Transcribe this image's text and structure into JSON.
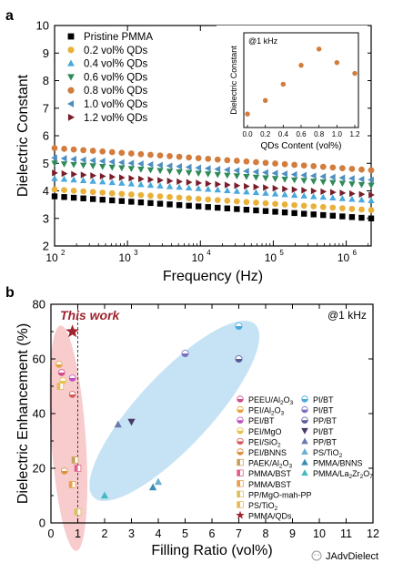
{
  "watermark": "JAdvDielect",
  "chart_data": [
    {
      "panel": "a",
      "type": "scatter",
      "xlabel": "Frequency (Hz)",
      "ylabel": "Dielectric Constant",
      "xscale": "log",
      "xlim": [
        100,
        2200000
      ],
      "ylim": [
        2,
        10
      ],
      "yticks": [
        "2",
        "3",
        "4",
        "5",
        "6",
        "7",
        "8",
        "9",
        "10"
      ],
      "xticks": [
        "10",
        "10",
        "10",
        "10",
        "10"
      ],
      "xtick_exponents": [
        "2",
        "3",
        "4",
        "5",
        "6"
      ],
      "legend_position": "top-left",
      "series": [
        {
          "name": "Pristine PMMA",
          "marker": "square",
          "color": "#000000",
          "start": 3.8,
          "end": 3.0
        },
        {
          "name": "0.2 vol% QDs",
          "marker": "circle",
          "color": "#e8b23a",
          "start": 4.05,
          "end": 3.3
        },
        {
          "name": "0.4 vol% QDs",
          "marker": "triangle-up",
          "color": "#4aa9dc",
          "start": 4.45,
          "end": 3.65
        },
        {
          "name": "0.6 vol% QDs",
          "marker": "triangle-down",
          "color": "#2e8b57",
          "start": 5.0,
          "end": 4.2
        },
        {
          "name": "0.8 vol% QDs",
          "marker": "circle",
          "color": "#d27c3d",
          "start": 5.55,
          "end": 4.75
        },
        {
          "name": "1.0 vol% QDs",
          "marker": "triangle-left",
          "color": "#4f8fc0",
          "start": 5.2,
          "end": 4.4
        },
        {
          "name": "1.2 vol% QDs",
          "marker": "triangle-right",
          "color": "#7a1d2a",
          "start": 4.65,
          "end": 3.85
        }
      ],
      "inset": {
        "annotation": "@1 kHz",
        "xlabel": "QDs Content (vol%)",
        "ylabel": "Dielectric Constant",
        "xlim": [
          0,
          1.2
        ],
        "ylim": [
          3,
          6.5
        ],
        "xticks": [
          "0.0",
          "0.2",
          "0.4",
          "0.6",
          "0.8",
          "1.0",
          "1.2"
        ],
        "color": "#d27c3d",
        "x": [
          0.0,
          0.2,
          0.4,
          0.6,
          0.8,
          1.0,
          1.2
        ],
        "y": [
          3.5,
          4.0,
          4.6,
          5.3,
          5.9,
          5.4,
          5.0
        ]
      }
    },
    {
      "panel": "b",
      "type": "scatter",
      "xlabel": "Filling Ratio (vol%)",
      "ylabel": "Dielectric Enhancement (%)",
      "xlim": [
        0,
        12
      ],
      "ylim": [
        0,
        80
      ],
      "xticks": [
        "0",
        "1",
        "2",
        "3",
        "4",
        "5",
        "6",
        "7",
        "8",
        "9",
        "10",
        "11",
        "12"
      ],
      "yticks": [
        "0",
        "20",
        "40",
        "60",
        "80"
      ],
      "annotation": "@1 kHz",
      "highlight_label": "This work",
      "legend_position": "bottom-right",
      "legend_col1": [
        {
          "pre": "PEEU/Al",
          "sub": "2",
          "mid": "O",
          "sub2": "3",
          "color": "#d14b8a",
          "marker": "half-circle"
        },
        {
          "pre": "PEI/Al",
          "sub": "2",
          "mid": "O",
          "sub2": "3",
          "color": "#e5a23c",
          "marker": "half-circle"
        },
        {
          "pre": "PEI/BT",
          "sub": "",
          "mid": "",
          "sub2": "",
          "color": "#c04fc0",
          "marker": "half-circle"
        },
        {
          "pre": "PEI/MgO",
          "sub": "",
          "mid": "",
          "sub2": "",
          "color": "#e8c34a",
          "marker": "half-circle"
        },
        {
          "pre": "PEI/SiO",
          "sub": "2",
          "mid": "",
          "sub2": "",
          "color": "#d85a5a",
          "marker": "half-circle"
        },
        {
          "pre": "PEI/BNNS",
          "sub": "",
          "mid": "",
          "sub2": "",
          "color": "#e0903a",
          "marker": "half-circle"
        },
        {
          "pre": "PAEK/Al",
          "sub": "2",
          "mid": "O",
          "sub2": "3",
          "color": "#c7a35a",
          "marker": "half-square"
        },
        {
          "pre": "PMMA/BST",
          "sub": "",
          "mid": "",
          "sub2": "",
          "color": "#e0608a",
          "marker": "half-square"
        },
        {
          "pre": "PMMA/BST",
          "sub": "",
          "mid": "",
          "sub2": "",
          "color": "#e8a050",
          "marker": "half-square"
        },
        {
          "pre": "PP/MgO-mah-PP",
          "sub": "",
          "mid": "",
          "sub2": "",
          "color": "#d9c060",
          "marker": "half-square"
        },
        {
          "pre": "PS/TiO",
          "sub": "2",
          "mid": "",
          "sub2": "",
          "color": "#e8b85a",
          "marker": "half-square"
        },
        {
          "pre": "PMMA/QDs",
          "sub": "",
          "mid": "",
          "sub2": "",
          "color": "#a0242e",
          "marker": "star"
        }
      ],
      "legend_col2": [
        {
          "pre": "PI/BT",
          "sub": "",
          "mid": "",
          "sub2": "",
          "color": "#4aa9dc",
          "marker": "half-circle"
        },
        {
          "pre": "PI/BT",
          "sub": "",
          "mid": "",
          "sub2": "",
          "color": "#7a6fc0",
          "marker": "half-circle"
        },
        {
          "pre": "PP/BT",
          "sub": "",
          "mid": "",
          "sub2": "",
          "color": "#5a5a9a",
          "marker": "half-circle"
        },
        {
          "pre": "PI/BT",
          "sub": "",
          "mid": "",
          "sub2": "",
          "color": "#4a3a6a",
          "marker": "triangle-down"
        },
        {
          "pre": "PP/BT",
          "sub": "",
          "mid": "",
          "sub2": "",
          "color": "#6a7ab0",
          "marker": "triangle-up"
        },
        {
          "pre": "PS/TiO",
          "sub": "2",
          "mid": "",
          "sub2": "",
          "color": "#6ab0d0",
          "marker": "triangle-up"
        },
        {
          "pre": "PMMA/BNNS",
          "sub": "",
          "mid": "",
          "sub2": "",
          "color": "#3a8fb0",
          "marker": "triangle-up"
        },
        {
          "pre": "PMMA/La",
          "sub": "2",
          "mid": "Zr",
          "sub2": "2",
          "tail": "O",
          "sub3": "7",
          "color": "#48b8c0",
          "marker": "triangle-up"
        }
      ],
      "points_low": [
        {
          "x": 0.3,
          "y": 58,
          "color": "#e5a23c",
          "marker": "half-circle"
        },
        {
          "x": 0.4,
          "y": 55,
          "color": "#d14b8a",
          "marker": "half-circle"
        },
        {
          "x": 0.45,
          "y": 52,
          "color": "#e8c34a",
          "marker": "half-circle"
        },
        {
          "x": 0.8,
          "y": 53,
          "color": "#c04fc0",
          "marker": "half-circle"
        },
        {
          "x": 0.8,
          "y": 47,
          "color": "#d85a5a",
          "marker": "half-circle"
        },
        {
          "x": 0.5,
          "y": 19,
          "color": "#e0903a",
          "marker": "half-circle"
        },
        {
          "x": 0.9,
          "y": 23,
          "color": "#c7a35a",
          "marker": "half-square"
        },
        {
          "x": 1.0,
          "y": 20,
          "color": "#e0608a",
          "marker": "half-square"
        },
        {
          "x": 0.8,
          "y": 14,
          "color": "#e8a050",
          "marker": "half-square"
        },
        {
          "x": 1.0,
          "y": 4,
          "color": "#d9c060",
          "marker": "half-square"
        },
        {
          "x": 0.35,
          "y": 50,
          "color": "#e8b85a",
          "marker": "half-square"
        }
      ],
      "points_high": [
        {
          "x": 2.0,
          "y": 10,
          "color": "#48b8c0",
          "marker": "triangle-up"
        },
        {
          "x": 2.5,
          "y": 36,
          "color": "#6a7ab0",
          "marker": "triangle-up"
        },
        {
          "x": 3.0,
          "y": 37,
          "color": "#4a3a6a",
          "marker": "triangle-down"
        },
        {
          "x": 3.8,
          "y": 13,
          "color": "#3a8fb0",
          "marker": "triangle-up"
        },
        {
          "x": 4.0,
          "y": 15,
          "color": "#6ab0d0",
          "marker": "triangle-up"
        },
        {
          "x": 5.0,
          "y": 62,
          "color": "#7a6fc0",
          "marker": "half-circle"
        },
        {
          "x": 7.0,
          "y": 72,
          "color": "#4aa9dc",
          "marker": "half-circle"
        },
        {
          "x": 7.0,
          "y": 60,
          "color": "#5a5a9a",
          "marker": "half-circle"
        }
      ],
      "this_work": {
        "x": 0.8,
        "y": 70,
        "color": "#a0242e",
        "marker": "star"
      }
    }
  ]
}
